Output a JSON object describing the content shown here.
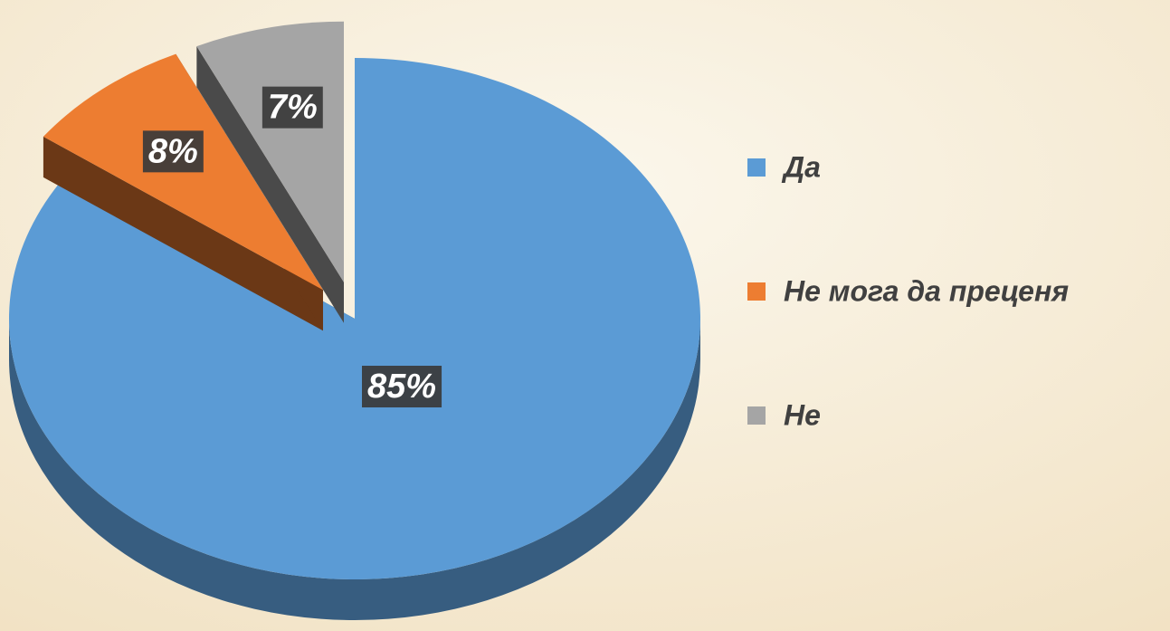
{
  "chart_data": {
    "type": "pie",
    "categories": [
      "Да",
      "Не мога да преценя",
      "Не"
    ],
    "values": [
      85,
      8,
      7
    ],
    "value_labels": [
      "85%",
      "8%",
      "7%"
    ],
    "colors": [
      "#5b9bd5",
      "#ed7d31",
      "#a5a5a5"
    ],
    "legend": "right"
  }
}
